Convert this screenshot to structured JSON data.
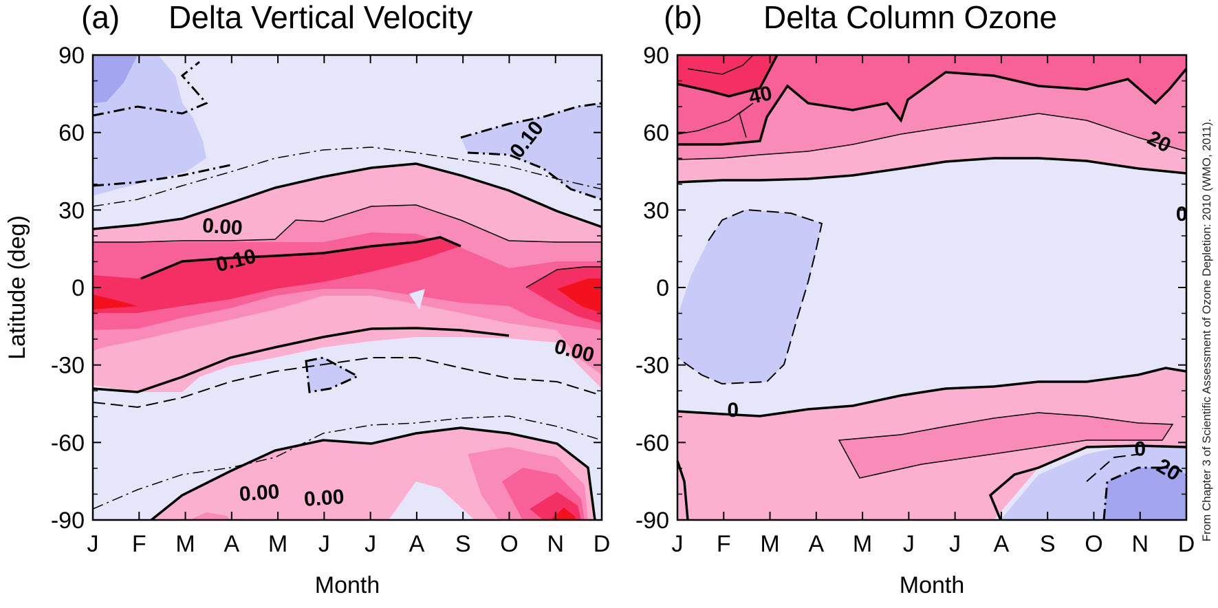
{
  "colors": {
    "neg_strong": "#a3a6ee",
    "neg": "#c8cbf7",
    "neutral": "#e6e6fa",
    "pos1": "#fbb0d0",
    "pos2": "#f98bb8",
    "pos3": "#f76198",
    "pos4": "#f42f64",
    "pos5": "#f2111d"
  },
  "credit_line": "From Chapter 3 of Scientific Assessment of Ozone Depletion: 2010 (WMO, 2011).",
  "chart_data": [
    {
      "type": "contour",
      "panel_label": "(a)",
      "title": "Delta Vertical Velocity",
      "xlabel": "Month",
      "ylabel": "Latitude (deg)",
      "x": [
        "J",
        "F",
        "M",
        "A",
        "M",
        "J",
        "J",
        "A",
        "S",
        "O",
        "N",
        "D"
      ],
      "yticks": [
        90,
        60,
        30,
        0,
        -30,
        -60,
        -90
      ],
      "ylim": [
        -90,
        90
      ],
      "contour_labels": [
        {
          "text": "0.10",
          "month": 9.4,
          "lat": 57,
          "angle": -52
        },
        {
          "text": "0.00",
          "month": 2.8,
          "lat": 23,
          "angle": 4
        },
        {
          "text": "0.10",
          "month": 3.1,
          "lat": 10,
          "angle": -14
        },
        {
          "text": "0.00",
          "month": 10.4,
          "lat": -25,
          "angle": 14
        },
        {
          "text": "0.00",
          "month": 3.6,
          "lat": -80,
          "angle": -4
        },
        {
          "text": "0.00",
          "month": 5.0,
          "lat": -82,
          "angle": -4
        }
      ]
    },
    {
      "type": "contour",
      "panel_label": "(b)",
      "title": "Delta Column Ozone",
      "xlabel": "Month",
      "ylabel": "",
      "x": [
        "J",
        "F",
        "M",
        "A",
        "M",
        "J",
        "J",
        "A",
        "S",
        "O",
        "N",
        "D"
      ],
      "yticks": [
        90,
        60,
        30,
        0,
        -30,
        -60,
        -90
      ],
      "ylim": [
        -90,
        90
      ],
      "contour_labels": [
        {
          "text": "40",
          "month": 1.8,
          "lat": 74,
          "angle": -12
        },
        {
          "text": "20",
          "month": 10.4,
          "lat": 56,
          "angle": 28
        },
        {
          "text": "0",
          "month": 10.9,
          "lat": 28,
          "angle": 0
        },
        {
          "text": "0",
          "month": 1.2,
          "lat": -48,
          "angle": 0
        },
        {
          "text": "0",
          "month": 10.0,
          "lat": -63,
          "angle": 0
        },
        {
          "text": "20",
          "month": 10.6,
          "lat": -71,
          "angle": 30
        }
      ]
    }
  ]
}
